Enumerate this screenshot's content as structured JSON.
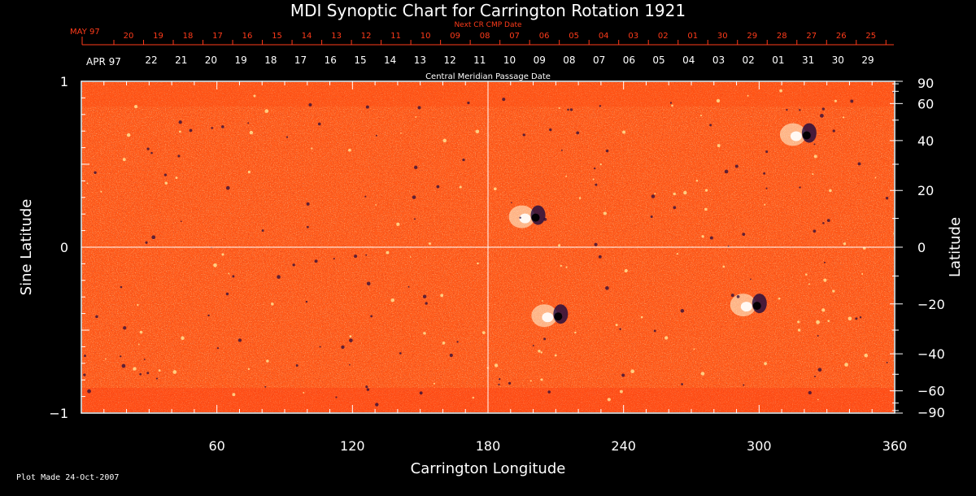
{
  "chart_data": {
    "type": "heatmap",
    "title": "MDI Synoptic Chart for Carrington Rotation 1921",
    "xlabel": "Carrington Longitude",
    "ylabel_left": "Sine Latitude",
    "ylabel_right": "Latitude",
    "xlim": [
      0,
      360
    ],
    "ylim": [
      -1,
      1
    ],
    "x_ticks": [
      "60",
      "120",
      "180",
      "240",
      "300",
      "360"
    ],
    "x_tick_values": [
      60,
      120,
      180,
      240,
      300,
      360
    ],
    "y_left_ticks": [
      "1",
      "0",
      "−1"
    ],
    "y_left_tick_values": [
      1,
      0,
      -1
    ],
    "y_right_ticks": [
      "90",
      "60",
      "40",
      "20",
      "0",
      "−20",
      "−40",
      "−60",
      "−90"
    ],
    "y_right_tick_values": [
      90,
      60,
      40,
      20,
      0,
      -20,
      -40,
      -60,
      -90
    ],
    "grid_lines": {
      "x": [
        180
      ],
      "y": [
        0
      ]
    },
    "colors": {
      "background_field": "#ff5a1a",
      "positive_polarity": "#ffffe0",
      "negative_polarity": "#1a0a40",
      "axes": "#ffffff",
      "red_labels": "#ff3b1a"
    },
    "top_axis_label": "Next CR CMP Date",
    "top_axis_start": "MAY 97",
    "top_axis_dates": [
      "20",
      "19",
      "18",
      "17",
      "16",
      "15",
      "14",
      "13",
      "12",
      "11",
      "10",
      "09",
      "08",
      "07",
      "06",
      "05",
      "04",
      "03",
      "02",
      "01",
      "30",
      "29",
      "28",
      "27",
      "26",
      "25"
    ],
    "bottom_axis_label": "Central Meridian Passage Date",
    "bottom_axis_start": "APR 97",
    "bottom_axis_dates": [
      "22",
      "21",
      "20",
      "19",
      "18",
      "17",
      "16",
      "15",
      "14",
      "13",
      "12",
      "11",
      "10",
      "09",
      "08",
      "07",
      "06",
      "05",
      "04",
      "03",
      "02",
      "01",
      "31",
      "30",
      "29"
    ],
    "active_regions": [
      {
        "lon": 200,
        "lat": 10,
        "polarity": "bipole"
      },
      {
        "lon": 210,
        "lat": -25,
        "polarity": "bipole"
      },
      {
        "lon": 298,
        "lat": -21,
        "polarity": "bipole"
      },
      {
        "lon": 320,
        "lat": 42,
        "polarity": "bipole"
      }
    ]
  },
  "footer": {
    "plot_made": "Plot Made 24-Oct-2007"
  }
}
